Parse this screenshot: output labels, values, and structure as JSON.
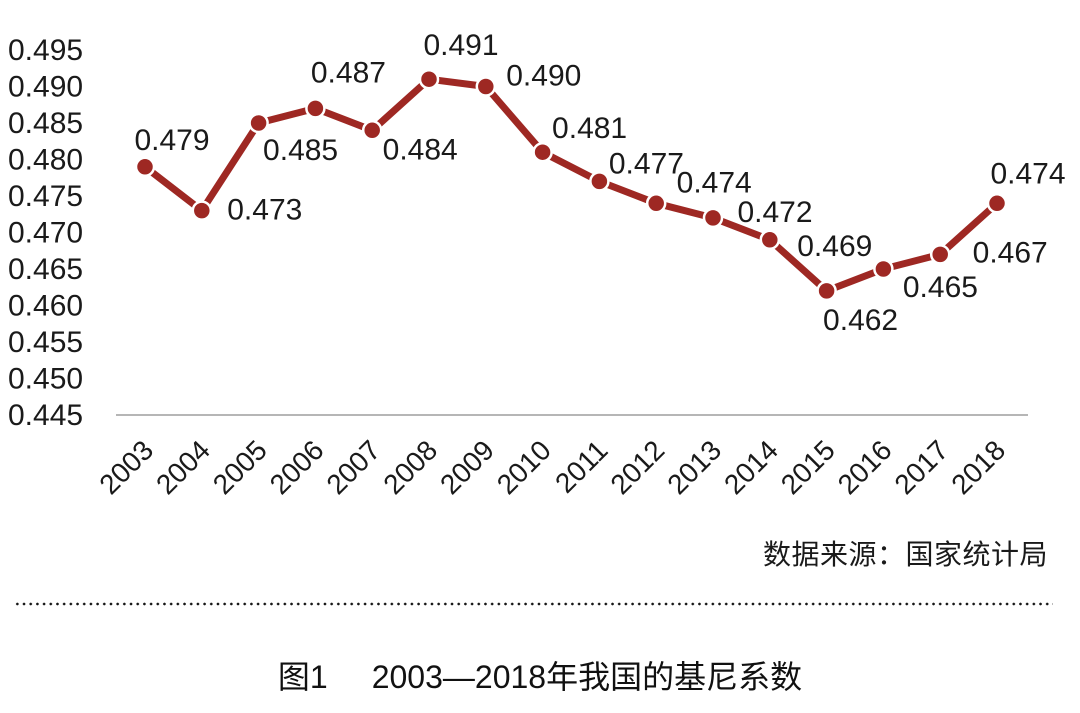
{
  "chart_data": {
    "type": "line",
    "title": "",
    "x": [
      "2003",
      "2004",
      "2005",
      "2006",
      "2007",
      "2008",
      "2009",
      "2010",
      "2011",
      "2012",
      "2013",
      "2014",
      "2015",
      "2016",
      "2017",
      "2018"
    ],
    "series": [
      {
        "name": "基尼系数",
        "values": [
          0.479,
          0.473,
          0.485,
          0.487,
          0.484,
          0.491,
          0.49,
          0.481,
          0.477,
          0.474,
          0.472,
          0.469,
          0.462,
          0.465,
          0.467,
          0.474
        ]
      }
    ],
    "point_labels": [
      "0.479",
      "0.473",
      "0.485",
      "0.487",
      "0.484",
      "0.491",
      "0.490",
      "0.481",
      "0.477",
      "0.474",
      "0.472",
      "0.469",
      "0.462",
      "0.465",
      "0.467",
      "0.474"
    ],
    "xlabel": "",
    "ylabel": "",
    "ylim": [
      0.445,
      0.495
    ],
    "ytick_step": 0.005,
    "yticks": [
      "0.495",
      "0.490",
      "0.485",
      "0.480",
      "0.475",
      "0.470",
      "0.465",
      "0.460",
      "0.455",
      "0.450",
      "0.445"
    ],
    "grid": false,
    "legend_position": "none",
    "line_color": "#9E2823",
    "marker": "circle",
    "axis_color": "#9e9e9e",
    "text_color": "#1a1a1a",
    "source_note": "数据来源：国家统计局"
  },
  "caption": {
    "label": "图1",
    "title": "2003—2018年我国的基尼系数"
  }
}
